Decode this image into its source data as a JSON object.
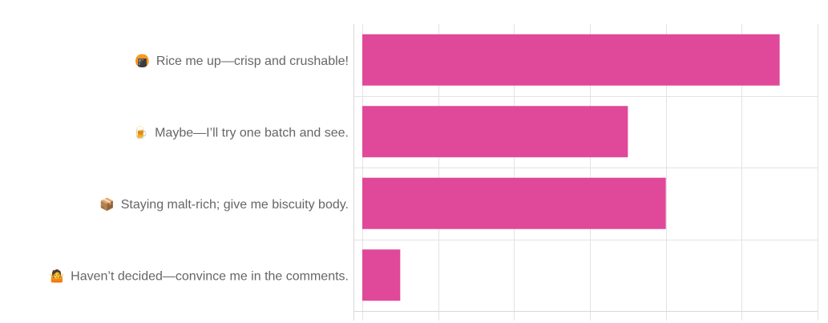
{
  "colors": {
    "bar": "#e04899",
    "grid": "#e3e3e3",
    "label": "#666666"
  },
  "chart_data": {
    "type": "bar",
    "orientation": "horizontal",
    "title": "",
    "xlabel": "",
    "ylabel": "",
    "grid": true,
    "legend": "none",
    "xlim": [
      0,
      12
    ],
    "categories": [
      {
        "icon": "🍘",
        "icon_name": "rice-cracker-icon",
        "label": "Rice me up—crisp and crushable!"
      },
      {
        "icon": "🍺",
        "icon_name": "beer-mug-icon",
        "label": "Maybe—I’ll try one batch and see."
      },
      {
        "icon": "📦",
        "icon_name": "package-icon",
        "label": "Staying malt-rich; give me biscuity body."
      },
      {
        "icon": "🤷",
        "icon_name": "shrug-icon",
        "label": "Haven’t decided—convince me in the comments."
      }
    ],
    "values": [
      11,
      7,
      8,
      1
    ]
  }
}
